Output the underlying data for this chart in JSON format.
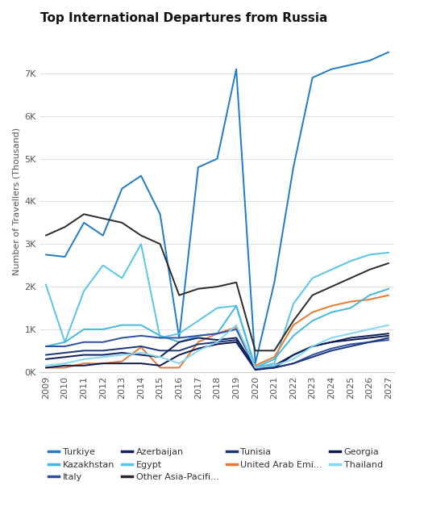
{
  "title": "Top International Departures from Russia",
  "ylabel": "Number of Travellers (Thousand)",
  "years": [
    2009,
    2010,
    2011,
    2012,
    2013,
    2014,
    2015,
    2016,
    2017,
    2018,
    2019,
    2020,
    2021,
    2022,
    2023,
    2024,
    2025,
    2026,
    2027
  ],
  "series": [
    {
      "name": "Turkiye",
      "color": "#1f7bc8",
      "values": [
        2750,
        2700,
        3500,
        3200,
        4300,
        4600,
        3700,
        800,
        4800,
        5000,
        7100,
        200,
        2100,
        4800,
        6900,
        7100,
        7200,
        7300,
        7500
      ]
    },
    {
      "name": "Egypt",
      "color": "#56c5e8",
      "values": [
        2050,
        700,
        1900,
        2500,
        2200,
        3000,
        800,
        900,
        1200,
        1500,
        1550,
        100,
        200,
        1600,
        2200,
        2400,
        2600,
        2750,
        2800
      ]
    },
    {
      "name": "United Arab Emi...",
      "color": "#e87832",
      "values": [
        100,
        100,
        200,
        200,
        250,
        580,
        100,
        100,
        700,
        900,
        1050,
        150,
        350,
        1100,
        1400,
        1550,
        1650,
        1700,
        1800
      ]
    },
    {
      "name": "Kazakhstan",
      "color": "#44b8e0",
      "values": [
        600,
        700,
        1000,
        1000,
        1100,
        1100,
        850,
        700,
        850,
        900,
        1550,
        100,
        300,
        850,
        1200,
        1400,
        1500,
        1800,
        1950
      ]
    },
    {
      "name": "Other Asia-Pacifi...",
      "color": "#2a2a2a",
      "values": [
        3200,
        3400,
        3700,
        3600,
        3500,
        3200,
        3000,
        1800,
        1950,
        2000,
        2100,
        500,
        500,
        1200,
        1800,
        2000,
        2200,
        2400,
        2550
      ]
    },
    {
      "name": "Georgia",
      "color": "#0d1a4a",
      "values": [
        100,
        150,
        150,
        200,
        200,
        200,
        150,
        400,
        550,
        650,
        700,
        50,
        100,
        400,
        600,
        700,
        750,
        800,
        850
      ]
    },
    {
      "name": "Italy",
      "color": "#2e4fa3",
      "values": [
        600,
        600,
        700,
        700,
        800,
        850,
        800,
        800,
        850,
        900,
        1000,
        100,
        100,
        200,
        400,
        550,
        650,
        700,
        750
      ]
    },
    {
      "name": "Tunisia",
      "color": "#1a357a",
      "values": [
        400,
        450,
        500,
        500,
        550,
        600,
        500,
        500,
        650,
        700,
        750,
        100,
        100,
        200,
        350,
        500,
        600,
        700,
        800
      ]
    },
    {
      "name": "Azerbaijan",
      "color": "#0f1f5c",
      "values": [
        300,
        350,
        400,
        400,
        450,
        400,
        350,
        700,
        800,
        750,
        800,
        100,
        150,
        400,
        600,
        700,
        800,
        850,
        900
      ]
    },
    {
      "name": "Thailand",
      "color": "#82d7f5",
      "values": [
        150,
        200,
        300,
        350,
        400,
        450,
        350,
        200,
        500,
        700,
        1100,
        100,
        150,
        300,
        600,
        800,
        900,
        1000,
        1100
      ]
    }
  ],
  "ylim": [
    0,
    8000
  ],
  "yticks": [
    0,
    1000,
    2000,
    3000,
    4000,
    5000,
    6000,
    7000
  ],
  "ytick_labels": [
    "0K",
    "1K",
    "2K",
    "3K",
    "4K",
    "5K",
    "6K",
    "7K"
  ],
  "background_color": "#ffffff",
  "plot_bg_color": "#ffffff",
  "title_fontsize": 11,
  "axis_fontsize": 8,
  "legend_fontsize": 8,
  "legend_order": [
    "Turkiye",
    "Kazakhstan",
    "Italy",
    "Azerbaijan",
    "Egypt",
    "Other Asia-Pacifi...",
    "Tunisia",
    "United Arab Emi...",
    "Georgia",
    "Thailand"
  ]
}
